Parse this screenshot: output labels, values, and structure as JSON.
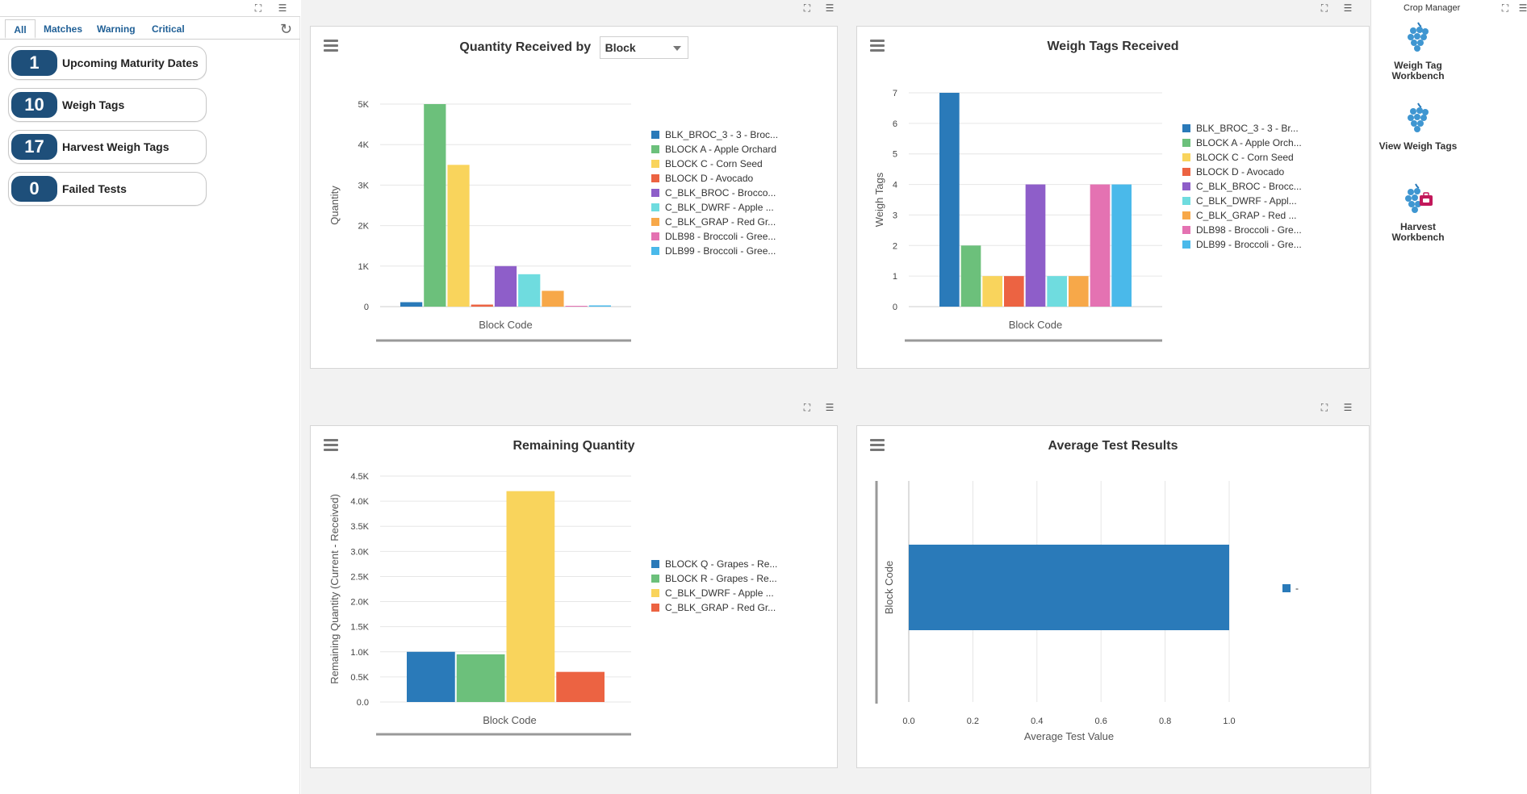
{
  "left_panel": {
    "tabs": [
      "All",
      "Matches",
      "Warning",
      "Critical"
    ],
    "alerts": [
      {
        "count": "1",
        "label": "Upcoming Maturity Dates"
      },
      {
        "count": "10",
        "label": "Weigh Tags"
      },
      {
        "count": "17",
        "label": "Harvest Weigh Tags"
      },
      {
        "count": "0",
        "label": "Failed Tests"
      }
    ]
  },
  "qty_card": {
    "title": "Quantity Received by",
    "select_value": "Block",
    "legend": [
      "BLK_BROC_3 - 3 - Broc...",
      "BLOCK A - Apple Orchard",
      "BLOCK C - Corn Seed",
      "BLOCK D - Avocado",
      "C_BLK_BROC - Brocco...",
      "C_BLK_DWRF - Apple ...",
      "C_BLK_GRAP - Red Gr...",
      "DLB98 - Broccoli - Gree...",
      "DLB99 - Broccoli - Gree..."
    ]
  },
  "weigh_card": {
    "title": "Weigh Tags Received",
    "legend": [
      "BLK_BROC_3 - 3 - Br...",
      "BLOCK A - Apple Orch...",
      "BLOCK C - Corn Seed",
      "BLOCK D - Avocado",
      "C_BLK_BROC - Brocc...",
      "C_BLK_DWRF - Appl...",
      "C_BLK_GRAP - Red ...",
      "DLB98 - Broccoli - Gre...",
      "DLB99 - Broccoli - Gre..."
    ]
  },
  "remaining_card": {
    "title": "Remaining Quantity",
    "legend": [
      "BLOCK Q - Grapes - Re...",
      "BLOCK R - Grapes - Re...",
      "C_BLK_DWRF - Apple ...",
      "C_BLK_GRAP - Red Gr..."
    ]
  },
  "avg_card": {
    "title": "Average Test Results",
    "legend": [
      "-"
    ]
  },
  "right_panel": {
    "title": "Crop Manager",
    "items": [
      {
        "line1": "Weigh Tag",
        "line2": "Workbench"
      },
      {
        "line1": "View Weigh Tags",
        "line2": ""
      },
      {
        "line1": "Harvest",
        "line2": "Workbench"
      }
    ]
  },
  "colors": {
    "series": [
      "#2a7ab9",
      "#6cc07b",
      "#f9d45c",
      "#ec6342",
      "#8e5ec9",
      "#6fdcdf",
      "#f7a849",
      "#e472b2",
      "#4ab9ea"
    ],
    "alert_badge": "#1e4f7a",
    "tab_text": "#1f5f96"
  },
  "chart_data": [
    {
      "type": "bar",
      "title": "Quantity Received by Block",
      "xlabel": "Block Code",
      "ylabel": "Quantity",
      "ylim": [
        0,
        5000
      ],
      "yticks": [
        "0",
        "1K",
        "2K",
        "3K",
        "4K",
        "5K"
      ],
      "categories": [
        "BLK_BROC_3 - 3 - Broc...",
        "BLOCK A - Apple Orchard",
        "BLOCK C - Corn Seed",
        "BLOCK D - Avocado",
        "C_BLK_BROC - Brocco...",
        "C_BLK_DWRF - Apple ...",
        "C_BLK_GRAP - Red Gr...",
        "DLB98 - Broccoli - Gree...",
        "DLB99 - Broccoli - Gree..."
      ],
      "values": [
        110,
        5000,
        3500,
        50,
        1000,
        800,
        390,
        20,
        30
      ]
    },
    {
      "type": "bar",
      "title": "Weigh Tags Received",
      "xlabel": "Block Code",
      "ylabel": "Weigh Tags",
      "ylim": [
        0,
        7
      ],
      "yticks": [
        "0",
        "1",
        "2",
        "3",
        "4",
        "5",
        "6",
        "7"
      ],
      "categories": [
        "BLK_BROC_3 - 3 - Br...",
        "BLOCK A - Apple Orch...",
        "BLOCK C - Corn Seed",
        "BLOCK D - Avocado",
        "C_BLK_BROC - Brocc...",
        "C_BLK_DWRF - Appl...",
        "C_BLK_GRAP - Red ...",
        "DLB98 - Broccoli - Gre...",
        "DLB99 - Broccoli - Gre..."
      ],
      "values": [
        7,
        2,
        1,
        1,
        4,
        1,
        1,
        4,
        4
      ]
    },
    {
      "type": "bar",
      "title": "Remaining Quantity",
      "xlabel": "Block Code",
      "ylabel": "Remaining Quantity (Current - Received)",
      "ylim": [
        0,
        4500
      ],
      "yticks": [
        "0.0",
        "0.5K",
        "1.0K",
        "1.5K",
        "2.0K",
        "2.5K",
        "3.0K",
        "3.5K",
        "4.0K",
        "4.5K"
      ],
      "categories": [
        "BLOCK Q - Grapes - Re...",
        "BLOCK R - Grapes - Re...",
        "C_BLK_DWRF - Apple ...",
        "C_BLK_GRAP - Red Gr..."
      ],
      "values": [
        1000,
        950,
        4200,
        600
      ]
    },
    {
      "type": "bar",
      "orientation": "horizontal",
      "title": "Average Test Results",
      "xlabel": "Average Test Value",
      "ylabel": "Block Code",
      "xlim": [
        0,
        1
      ],
      "xticks": [
        "0.0",
        "0.2",
        "0.4",
        "0.6",
        "0.8",
        "1.0"
      ],
      "categories": [
        "-"
      ],
      "values": [
        1.0
      ]
    }
  ]
}
